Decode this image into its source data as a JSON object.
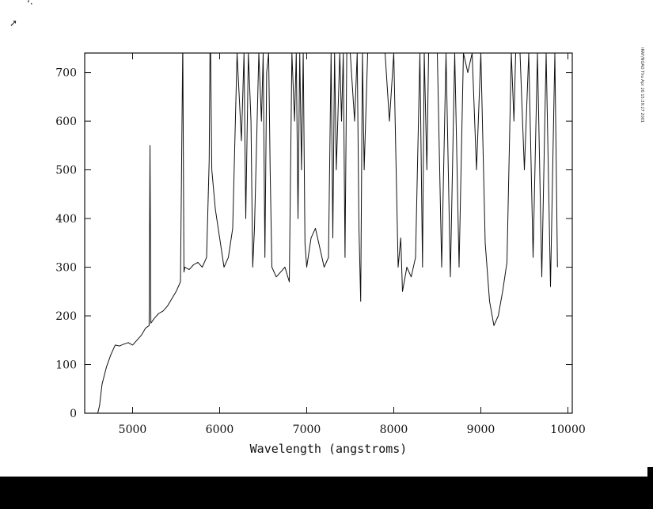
{
  "marks": {
    "top_mark": "‘·",
    "arrow_mark": "➚"
  },
  "side_note": "IRAF/NOAO Thu Apr 26 15:39:27 2001",
  "chart_data": {
    "type": "line",
    "title": "",
    "xlabel": "Wavelength (angstroms)",
    "ylabel": "",
    "xlim": [
      4450,
      10050
    ],
    "ylim": [
      0,
      740
    ],
    "xticks": [
      5000,
      6000,
      7000,
      8000,
      9000,
      10000
    ],
    "yticks": [
      0,
      100,
      200,
      300,
      400,
      500,
      600,
      700
    ],
    "grid": false,
    "series": [
      {
        "color": "#111111",
        "x": [
          4600,
          4620,
          4650,
          4700,
          4750,
          4800,
          4850,
          4900,
          4950,
          5000,
          5050,
          5100,
          5150,
          5190,
          5200,
          5210,
          5250,
          5300,
          5350,
          5400,
          5450,
          5500,
          5550,
          5575,
          5577,
          5590,
          5600,
          5650,
          5700,
          5750,
          5800,
          5850,
          5880,
          5889,
          5896,
          5910,
          5950,
          6000,
          6050,
          6100,
          6150,
          6200,
          6250,
          6280,
          6300,
          6330,
          6360,
          6380,
          6400,
          6450,
          6480,
          6500,
          6520,
          6540,
          6563,
          6580,
          6600,
          6650,
          6700,
          6750,
          6800,
          6830,
          6860,
          6880,
          6900,
          6920,
          6940,
          6960,
          6980,
          7000,
          7050,
          7100,
          7150,
          7200,
          7250,
          7280,
          7300,
          7320,
          7340,
          7380,
          7400,
          7420,
          7440,
          7460,
          7500,
          7550,
          7580,
          7600,
          7620,
          7640,
          7660,
          7700,
          7750,
          7800,
          7850,
          7900,
          7950,
          8000,
          8050,
          8080,
          8100,
          8150,
          8200,
          8250,
          8300,
          8330,
          8350,
          8380,
          8400,
          8450,
          8500,
          8550,
          8600,
          8650,
          8700,
          8750,
          8800,
          8850,
          8900,
          8950,
          9000,
          9050,
          9100,
          9150,
          9200,
          9250,
          9300,
          9350,
          9380,
          9400,
          9450,
          9500,
          9550,
          9600,
          9650,
          9700,
          9750,
          9800,
          9850,
          9880
        ],
        "y": [
          0,
          15,
          60,
          95,
          120,
          140,
          138,
          142,
          145,
          140,
          150,
          160,
          175,
          180,
          550,
          185,
          195,
          205,
          210,
          220,
          235,
          250,
          270,
          740,
          740,
          290,
          300,
          295,
          305,
          310,
          300,
          320,
          520,
          740,
          740,
          500,
          420,
          360,
          300,
          320,
          380,
          740,
          560,
          740,
          400,
          740,
          600,
          300,
          380,
          740,
          600,
          740,
          320,
          700,
          740,
          500,
          300,
          280,
          290,
          300,
          270,
          740,
          600,
          740,
          400,
          740,
          500,
          740,
          350,
          300,
          360,
          380,
          340,
          300,
          320,
          740,
          360,
          740,
          500,
          740,
          600,
          740,
          320,
          740,
          740,
          600,
          740,
          380,
          230,
          740,
          500,
          740,
          740,
          740,
          740,
          740,
          600,
          740,
          300,
          360,
          250,
          300,
          280,
          320,
          740,
          300,
          740,
          500,
          740,
          740,
          740,
          300,
          740,
          280,
          740,
          300,
          740,
          700,
          740,
          500,
          740,
          350,
          230,
          180,
          200,
          250,
          310,
          740,
          600,
          740,
          740,
          500,
          740,
          320,
          740,
          280,
          740,
          260,
          740,
          300
        ]
      }
    ]
  }
}
